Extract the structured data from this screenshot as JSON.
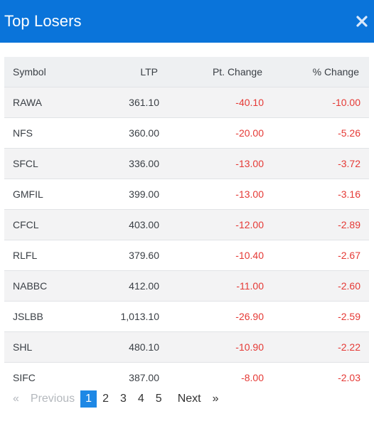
{
  "modal": {
    "title": "Top Losers",
    "close_glyph": "✖"
  },
  "table": {
    "headers": [
      "Symbol",
      "LTP",
      "Pt. Change",
      "% Change"
    ],
    "rows": [
      {
        "symbol": "RAWA",
        "ltp": "361.10",
        "pt_change": "-40.10",
        "pct_change": "-10.00"
      },
      {
        "symbol": "NFS",
        "ltp": "360.00",
        "pt_change": "-20.00",
        "pct_change": "-5.26"
      },
      {
        "symbol": "SFCL",
        "ltp": "336.00",
        "pt_change": "-13.00",
        "pct_change": "-3.72"
      },
      {
        "symbol": "GMFIL",
        "ltp": "399.00",
        "pt_change": "-13.00",
        "pct_change": "-3.16"
      },
      {
        "symbol": "CFCL",
        "ltp": "403.00",
        "pt_change": "-12.00",
        "pct_change": "-2.89"
      },
      {
        "symbol": "RLFL",
        "ltp": "379.60",
        "pt_change": "-10.40",
        "pct_change": "-2.67"
      },
      {
        "symbol": "NABBC",
        "ltp": "412.00",
        "pt_change": "-11.00",
        "pct_change": "-2.60"
      },
      {
        "symbol": "JSLBB",
        "ltp": "1,013.10",
        "pt_change": "-26.90",
        "pct_change": "-2.59"
      },
      {
        "symbol": "SHL",
        "ltp": "480.10",
        "pt_change": "-10.90",
        "pct_change": "-2.22"
      },
      {
        "symbol": "SIFC",
        "ltp": "387.00",
        "pt_change": "-8.00",
        "pct_change": "-2.03"
      }
    ]
  },
  "pagination": {
    "first_glyph": "«",
    "previous_label": "Previous",
    "pages": [
      "1",
      "2",
      "3",
      "4",
      "5"
    ],
    "active_page": "1",
    "next_label": "Next",
    "last_glyph": "»"
  },
  "colors": {
    "header_bg": "#0a74da",
    "negative": "#e53935",
    "active_page": "#1e88e5"
  }
}
